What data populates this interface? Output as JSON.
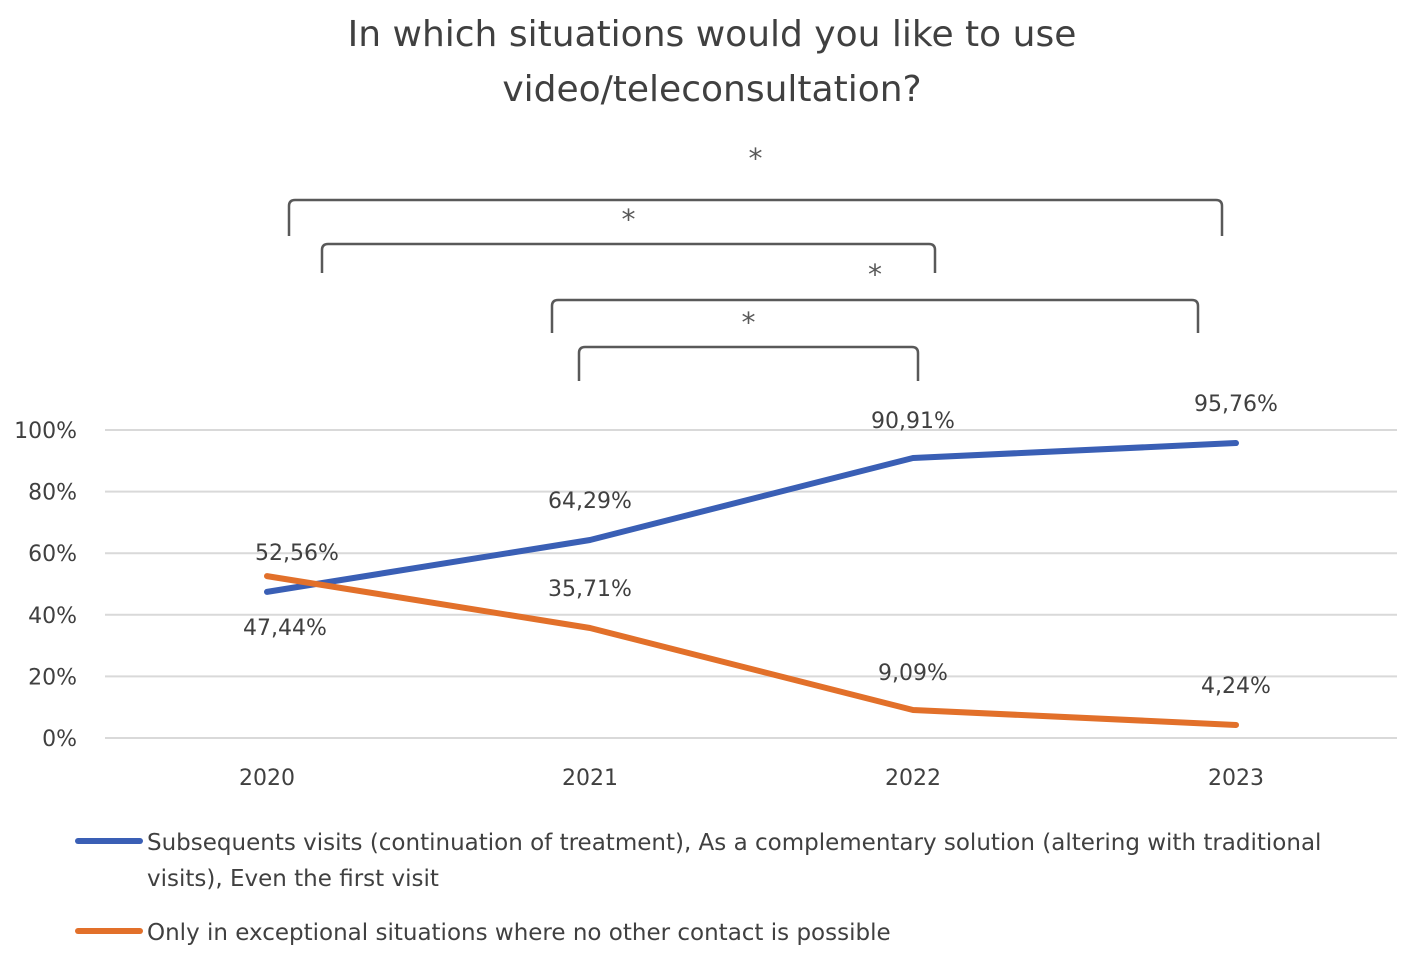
{
  "chart_data": {
    "type": "line",
    "title_lines": [
      "In which situations would you like to use",
      "video/teleconsultation?"
    ],
    "categories": [
      "2020",
      "2021",
      "2022",
      "2023"
    ],
    "y_ticks": [
      "0%",
      "20%",
      "40%",
      "60%",
      "80%",
      "100%"
    ],
    "ylim": [
      0,
      100
    ],
    "grid": true,
    "legend_position": "bottom",
    "series": [
      {
        "name": "Subsequents visits (continuation of treatment), As a complementary solution (altering with traditional visits), Even the first visit",
        "legend_lines": [
          "Subsequents visits (continuation of treatment), As a complementary solution (altering with traditional",
          "visits), Even the first visit"
        ],
        "color": "#3a5fb5",
        "values": [
          47.44,
          64.29,
          90.91,
          95.76
        ],
        "labels": [
          "47,44%",
          "64,29%",
          "90,91%",
          "95,76%"
        ]
      },
      {
        "name": "Only in exceptional situations where no other contact is possible",
        "legend_lines": [
          "Only in exceptional situations where no other contact is possible"
        ],
        "color": "#e2702a",
        "values": [
          52.56,
          35.71,
          9.09,
          4.24
        ],
        "labels": [
          "52,56%",
          "35,71%",
          "9,09%",
          "4,24%"
        ]
      }
    ],
    "significance": [
      {
        "from": "2020",
        "to": "2023",
        "label": "*"
      },
      {
        "from": "2020",
        "to": "2022",
        "label": "*"
      },
      {
        "from": "2021",
        "to": "2023",
        "label": "*"
      },
      {
        "from": "2021",
        "to": "2022",
        "label": "*"
      }
    ]
  }
}
